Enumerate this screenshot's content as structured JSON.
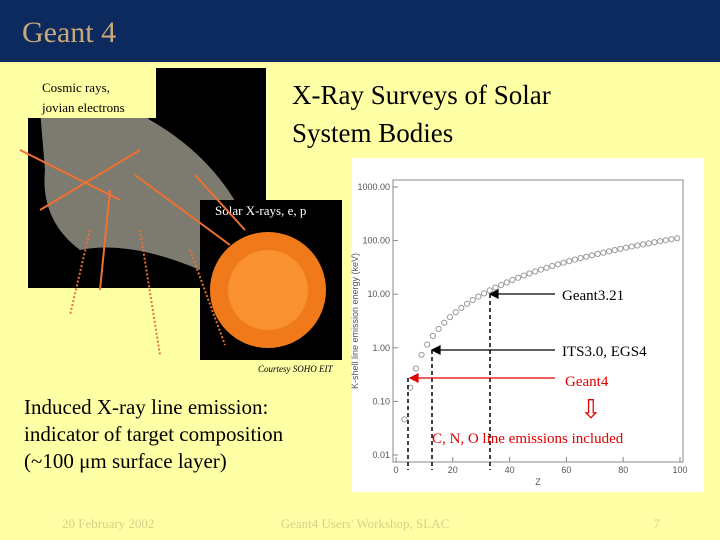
{
  "header": {
    "logo": "Geant 4"
  },
  "slide": {
    "title": [
      "X-Ray Surveys of Solar",
      "System Bodies"
    ],
    "cosmic": [
      "Cosmic rays,",
      "jovian electrons"
    ],
    "solar": "Solar X-rays, e, p",
    "courtesy": "Courtesy SOHO EIT",
    "body": [
      "Induced X-ray line emission:",
      "indicator of target composition",
      "(~100 μm surface layer)"
    ],
    "annotations": {
      "geant3": "Geant3.21",
      "its": "ITS3.0, EGS4",
      "geant4": "Geant4",
      "down": "⇩",
      "cno": "C, N, O line emissions included"
    },
    "footer": {
      "date": "20 February 2002",
      "event": "Geant4 Users' Workshop, SLAC",
      "page": "7"
    }
  },
  "chart_data": {
    "type": "scatter",
    "x_label": "Z",
    "y_label": "K-shell line emission energy (keV)",
    "log_y": true,
    "color": "#999999",
    "x": [
      3,
      5,
      7,
      9,
      11,
      13,
      15,
      17,
      19,
      21,
      23,
      25,
      27,
      29,
      31,
      33,
      35,
      37,
      39,
      41,
      43,
      45,
      47,
      49,
      51,
      53,
      55,
      57,
      59,
      61,
      63,
      65,
      67,
      69,
      71,
      73,
      75,
      77,
      79,
      81,
      83,
      85,
      87,
      89,
      91,
      93,
      95,
      97,
      99
    ],
    "values": [
      0.046,
      0.18,
      0.41,
      0.74,
      1.15,
      1.66,
      2.25,
      2.94,
      3.73,
      4.6,
      5.57,
      6.62,
      7.77,
      9.02,
      10.35,
      11.78,
      13.29,
      14.9,
      16.61,
      18.4,
      20.29,
      22.26,
      24.33,
      26.5,
      28.75,
      31.1,
      33.53,
      36.06,
      38.69,
      41.4,
      44.21,
      47.1,
      50.09,
      53.18,
      56.35,
      59.62,
      62.97,
      66.42,
      69.97,
      73.6,
      77.33,
      81.14,
      85.05,
      89.06,
      93.15,
      97.34,
      101.61,
      105.98,
      110.45
    ],
    "xlim": [
      0,
      100
    ],
    "xticks": [
      0,
      20,
      40,
      60,
      80,
      100
    ],
    "ylim": [
      0.01,
      1000
    ],
    "yticks": [
      {
        "value": 0.01,
        "label": "0.01"
      },
      {
        "value": 0.1,
        "label": "0.10"
      },
      {
        "value": 1,
        "label": "1.00"
      },
      {
        "value": 10,
        "label": "10.00"
      },
      {
        "value": 100,
        "label": "100.00"
      },
      {
        "value": 1000,
        "label": "1000.00"
      }
    ]
  }
}
